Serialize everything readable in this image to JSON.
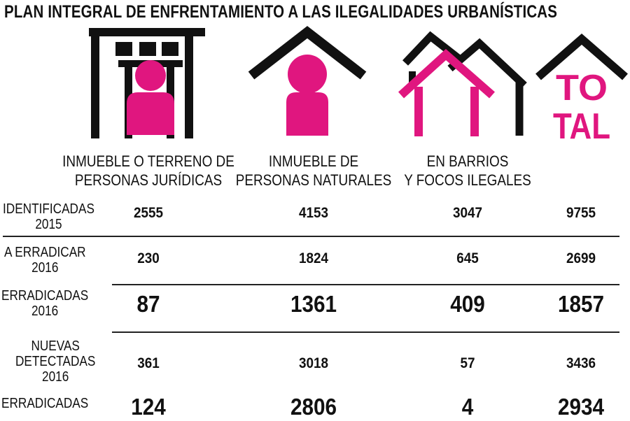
{
  "title": "PLAN INTEGRAL DE ENFRENTAMIENTO A LAS ILEGALIDADES URBANÍSTICAS",
  "colors": {
    "accent": "#e0167f",
    "ink": "#111111",
    "background": "#ffffff"
  },
  "icons": {
    "juridicas": "building-person-icon",
    "naturales": "house-person-icon",
    "barrios": "houses-icon",
    "total": "total-house-icon"
  },
  "total_icon_text": {
    "line1": "TO",
    "line2": "TAL"
  },
  "chart_data": {
    "type": "table",
    "title": "PLAN INTEGRAL DE ENFRENTAMIENTO A LAS ILEGALIDADES URBANÍSTICAS",
    "columns": [
      {
        "label_lines": [
          "INMUEBLE O TERRENO DE",
          "PERSONAS JURÍDICAS"
        ]
      },
      {
        "label_lines": [
          "INMUEBLE DE",
          "PERSONAS NATURALES"
        ]
      },
      {
        "label_lines": [
          "EN BARRIOS",
          "Y FOCOS ILEGALES"
        ]
      },
      {
        "label_lines": []
      }
    ],
    "rows": [
      {
        "label_lines": [
          "IDENTIFICADAS",
          "2015"
        ],
        "values": [
          2555,
          4153,
          3047,
          9755
        ],
        "emphasis": "normal"
      },
      {
        "label_lines": [
          "A ERRADICAR",
          "2016"
        ],
        "values": [
          230,
          1824,
          645,
          2699
        ],
        "emphasis": "normal"
      },
      {
        "label_lines": [
          "ERRADICADAS",
          "2016"
        ],
        "values": [
          87,
          1361,
          409,
          1857
        ],
        "emphasis": "large"
      },
      {
        "label_lines": [
          "NUEVAS",
          "DETECTADAS",
          "2016"
        ],
        "values": [
          361,
          3018,
          57,
          3436
        ],
        "emphasis": "normal"
      },
      {
        "label_lines": [
          "ERRADICADAS"
        ],
        "values": [
          124,
          2806,
          4,
          2934
        ],
        "emphasis": "large"
      }
    ]
  }
}
